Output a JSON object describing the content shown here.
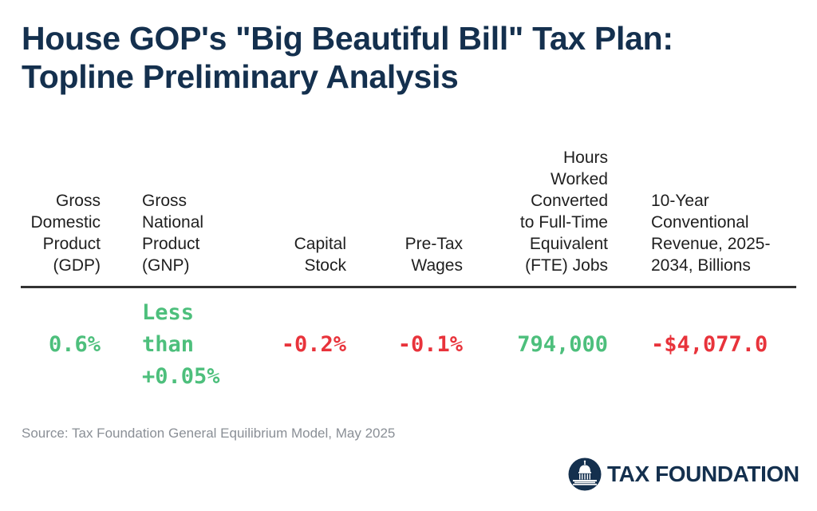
{
  "colors": {
    "title": "#14304e",
    "positive": "#4dbf7c",
    "negative": "#e8333b",
    "source": "#8a8f96",
    "rule": "#333333"
  },
  "title_lines": [
    "House GOP's \"Big Beautiful Bill\" Tax Plan:",
    "Topline Preliminary Analysis"
  ],
  "chart_data": {
    "type": "table",
    "title": "House GOP's \"Big Beautiful Bill\" Tax Plan: Topline Preliminary Analysis",
    "columns": [
      {
        "header_lines": [
          "Gross",
          "Domestic",
          "Product",
          "(GDP)"
        ],
        "value_lines": [
          "0.6%"
        ],
        "value": 0.6,
        "unit": "%",
        "sign": "positive"
      },
      {
        "header_lines": [
          "Gross",
          "National",
          "Product",
          "(GNP)"
        ],
        "value_lines": [
          "Less",
          "than",
          "+0.05%"
        ],
        "value": 0.05,
        "unit": "%",
        "sign": "positive"
      },
      {
        "header_lines": [
          "Capital",
          "Stock"
        ],
        "value_lines": [
          "-0.2%"
        ],
        "value": -0.2,
        "unit": "%",
        "sign": "negative"
      },
      {
        "header_lines": [
          "Pre-Tax",
          "Wages"
        ],
        "value_lines": [
          "-0.1%"
        ],
        "value": -0.1,
        "unit": "%",
        "sign": "negative"
      },
      {
        "header_lines": [
          "Hours",
          "Worked",
          "Converted",
          "to Full-Time",
          "Equivalent",
          "(FTE) Jobs"
        ],
        "value_lines": [
          "794,000"
        ],
        "value": 794000,
        "unit": "jobs",
        "sign": "positive"
      },
      {
        "header_lines": [
          "10-Year",
          "Conventional",
          "Revenue, 2025-",
          "2034, Billions"
        ],
        "value_lines": [
          "-$4,077.0"
        ],
        "value": -4077.0,
        "unit": "$ billions",
        "sign": "negative"
      }
    ]
  },
  "source": "Source: Tax Foundation General Equilibrium Model, May 2025",
  "logo": {
    "text": "TAX FOUNDATION",
    "icon": "capitol-dome-icon"
  }
}
